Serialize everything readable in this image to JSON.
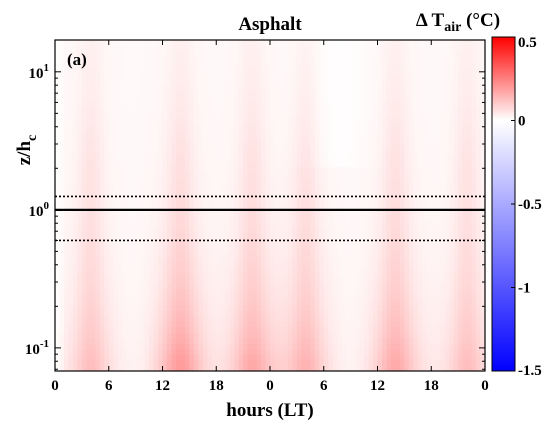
{
  "chart_data": {
    "type": "heatmap",
    "title": "Asphalt",
    "panel_label": "(a)",
    "xlabel": "hours (LT)",
    "ylabel_main": "z/h",
    "ylabel_sub": "c",
    "colorbar_label_main": "Δ T",
    "colorbar_label_sub": "air",
    "colorbar_label_unit": " (°C)",
    "x_tick_labels": [
      "0",
      "6",
      "12",
      "18",
      "0",
      "6",
      "12",
      "18",
      "0"
    ],
    "x_range_hours": [
      0,
      48
    ],
    "y_scale": "log",
    "y_range": [
      0.068,
      17
    ],
    "y_ticks": [
      {
        "value": 0.1,
        "base": "10",
        "exp": "-1"
      },
      {
        "value": 1,
        "base": "10",
        "exp": "0"
      },
      {
        "value": 10,
        "base": "10",
        "exp": "1"
      }
    ],
    "colorbar": {
      "range": [
        -1.5,
        0.5
      ],
      "tick_labels": [
        "0.5",
        "0",
        "-0.5",
        "-1",
        "-1.5"
      ],
      "colors": {
        "negative": "#0000ff",
        "zero": "#ffffff",
        "positive": "#ff0000"
      }
    },
    "reference_lines": [
      {
        "z": 1.25,
        "style": "dotted"
      },
      {
        "z": 1.0,
        "style": "solid"
      },
      {
        "z": 0.6,
        "style": "dotted"
      }
    ],
    "heat_peaks_hours": [
      4,
      14,
      22,
      28,
      38,
      46
    ],
    "values_near_ground_C": [
      0.08,
      0.15,
      0.12,
      0.1,
      0.12,
      0.08
    ]
  }
}
